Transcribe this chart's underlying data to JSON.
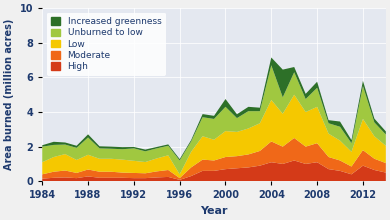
{
  "years": [
    1984,
    1985,
    1986,
    1987,
    1988,
    1989,
    1990,
    1991,
    1992,
    1993,
    1994,
    1995,
    1996,
    1997,
    1998,
    1999,
    2000,
    2001,
    2002,
    2003,
    2004,
    2005,
    2006,
    2007,
    2008,
    2009,
    2010,
    2011,
    2012,
    2013,
    2014
  ],
  "high": [
    0.15,
    0.2,
    0.22,
    0.18,
    0.28,
    0.2,
    0.2,
    0.2,
    0.18,
    0.18,
    0.22,
    0.25,
    0.08,
    0.3,
    0.6,
    0.6,
    0.7,
    0.75,
    0.8,
    0.9,
    1.1,
    1.0,
    1.2,
    1.0,
    1.1,
    0.7,
    0.6,
    0.4,
    0.9,
    0.65,
    0.5
  ],
  "moderate": [
    0.25,
    0.35,
    0.4,
    0.3,
    0.4,
    0.35,
    0.35,
    0.3,
    0.3,
    0.28,
    0.35,
    0.4,
    0.1,
    0.5,
    0.65,
    0.6,
    0.7,
    0.7,
    0.75,
    0.85,
    1.2,
    1.0,
    1.3,
    1.0,
    1.1,
    0.7,
    0.6,
    0.45,
    0.9,
    0.65,
    0.55
  ],
  "low": [
    0.7,
    0.85,
    0.95,
    0.75,
    0.85,
    0.75,
    0.75,
    0.75,
    0.7,
    0.65,
    0.75,
    0.85,
    0.22,
    0.9,
    1.35,
    1.2,
    1.5,
    1.4,
    1.5,
    1.6,
    2.4,
    1.9,
    2.5,
    2.0,
    2.1,
    1.35,
    1.15,
    0.85,
    1.8,
    1.3,
    1.0
  ],
  "unburned": [
    0.9,
    0.7,
    0.55,
    0.7,
    1.0,
    0.6,
    0.58,
    0.6,
    0.72,
    0.62,
    0.58,
    0.55,
    0.8,
    0.6,
    1.1,
    1.2,
    1.4,
    0.8,
    1.0,
    0.7,
    2.0,
    0.95,
    1.3,
    0.75,
    1.1,
    0.6,
    0.8,
    0.5,
    1.9,
    0.8,
    0.65
  ],
  "greenness": [
    0.08,
    0.18,
    0.12,
    0.12,
    0.18,
    0.12,
    0.12,
    0.12,
    0.08,
    0.1,
    0.08,
    0.08,
    0.08,
    0.08,
    0.18,
    0.18,
    0.45,
    0.22,
    0.25,
    0.2,
    0.45,
    1.6,
    0.3,
    0.3,
    0.35,
    0.18,
    0.3,
    0.18,
    0.3,
    0.22,
    0.18
  ],
  "colors": {
    "high": "#d43a18",
    "moderate": "#f06818",
    "low": "#f5c800",
    "unburned": "#a0c840",
    "greenness": "#2d7028"
  },
  "ylabel": "Area burned (million acres)",
  "xlabel": "Year",
  "ylim": [
    0,
    10
  ],
  "yticks": [
    0,
    2,
    4,
    6,
    8,
    10
  ],
  "xticks": [
    1984,
    1988,
    1992,
    1996,
    2000,
    2004,
    2008,
    2012
  ],
  "bg_color": "#e4e8f0",
  "fig_color": "#f0f0f0",
  "legend_labels": [
    "Increased greenness",
    "Unburned to low",
    "Low",
    "Moderate",
    "High"
  ],
  "axis_label_color": "#1e3a6e",
  "tick_label_color": "#1e3a6e",
  "ylabel_fontsize": 7,
  "xlabel_fontsize": 8,
  "tick_fontsize": 7,
  "legend_fontsize": 6.5
}
